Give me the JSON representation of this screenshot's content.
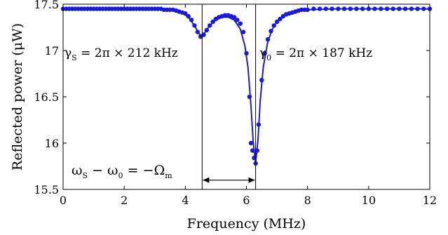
{
  "chart_data": {
    "type": "scatter",
    "xlabel": "Frequency (MHz)",
    "ylabel": "Reflected power (μW)",
    "xlim": [
      0,
      12
    ],
    "ylim": [
      15.5,
      17.5
    ],
    "xticks": [
      "0",
      "2",
      "4",
      "6",
      "8",
      "10",
      "12"
    ],
    "yticks": [
      "15.5",
      "16",
      "16.5",
      "17",
      "17.5"
    ],
    "grid": false,
    "marker_color": "#1a1adb",
    "line_color": "#1a1adb",
    "markers": [
      {
        "x": 0.0,
        "y": 17.45
      },
      {
        "x": 0.1,
        "y": 17.45
      },
      {
        "x": 0.2,
        "y": 17.45
      },
      {
        "x": 0.3,
        "y": 17.45
      },
      {
        "x": 0.4,
        "y": 17.45
      },
      {
        "x": 0.5,
        "y": 17.45
      },
      {
        "x": 0.6,
        "y": 17.45
      },
      {
        "x": 0.7,
        "y": 17.45
      },
      {
        "x": 0.8,
        "y": 17.45
      },
      {
        "x": 0.9,
        "y": 17.45
      },
      {
        "x": 1.0,
        "y": 17.45
      },
      {
        "x": 1.1,
        "y": 17.45
      },
      {
        "x": 1.2,
        "y": 17.45
      },
      {
        "x": 1.3,
        "y": 17.45
      },
      {
        "x": 1.4,
        "y": 17.45
      },
      {
        "x": 1.5,
        "y": 17.45
      },
      {
        "x": 1.6,
        "y": 17.45
      },
      {
        "x": 1.7,
        "y": 17.45
      },
      {
        "x": 1.8,
        "y": 17.45
      },
      {
        "x": 1.9,
        "y": 17.45
      },
      {
        "x": 2.0,
        "y": 17.45
      },
      {
        "x": 2.1,
        "y": 17.45
      },
      {
        "x": 2.2,
        "y": 17.45
      },
      {
        "x": 2.3,
        "y": 17.45
      },
      {
        "x": 2.4,
        "y": 17.45
      },
      {
        "x": 2.5,
        "y": 17.45
      },
      {
        "x": 2.6,
        "y": 17.45
      },
      {
        "x": 2.7,
        "y": 17.45
      },
      {
        "x": 2.8,
        "y": 17.45
      },
      {
        "x": 2.9,
        "y": 17.45
      },
      {
        "x": 3.0,
        "y": 17.45
      },
      {
        "x": 3.1,
        "y": 17.45
      },
      {
        "x": 3.2,
        "y": 17.45
      },
      {
        "x": 3.3,
        "y": 17.44
      },
      {
        "x": 3.4,
        "y": 17.44
      },
      {
        "x": 3.5,
        "y": 17.44
      },
      {
        "x": 3.6,
        "y": 17.44
      },
      {
        "x": 3.7,
        "y": 17.43
      },
      {
        "x": 3.8,
        "y": 17.42
      },
      {
        "x": 3.9,
        "y": 17.41
      },
      {
        "x": 4.0,
        "y": 17.4
      },
      {
        "x": 4.1,
        "y": 17.37
      },
      {
        "x": 4.2,
        "y": 17.33
      },
      {
        "x": 4.3,
        "y": 17.27
      },
      {
        "x": 4.4,
        "y": 17.2
      },
      {
        "x": 4.5,
        "y": 17.15
      },
      {
        "x": 4.6,
        "y": 17.17
      },
      {
        "x": 4.7,
        "y": 17.22
      },
      {
        "x": 4.8,
        "y": 17.27
      },
      {
        "x": 4.9,
        "y": 17.31
      },
      {
        "x": 5.0,
        "y": 17.34
      },
      {
        "x": 5.1,
        "y": 17.36
      },
      {
        "x": 5.2,
        "y": 17.37
      },
      {
        "x": 5.3,
        "y": 17.38
      },
      {
        "x": 5.4,
        "y": 17.38
      },
      {
        "x": 5.5,
        "y": 17.37
      },
      {
        "x": 5.6,
        "y": 17.36
      },
      {
        "x": 5.7,
        "y": 17.33
      },
      {
        "x": 5.8,
        "y": 17.29
      },
      {
        "x": 5.9,
        "y": 17.2
      },
      {
        "x": 6.0,
        "y": 16.97
      },
      {
        "x": 6.1,
        "y": 16.5
      },
      {
        "x": 6.15,
        "y": 16.0
      },
      {
        "x": 6.2,
        "y": 15.92
      },
      {
        "x": 6.25,
        "y": 15.84
      },
      {
        "x": 6.3,
        "y": 15.78
      },
      {
        "x": 6.35,
        "y": 15.92
      },
      {
        "x": 6.4,
        "y": 16.2
      },
      {
        "x": 6.5,
        "y": 16.68
      },
      {
        "x": 6.6,
        "y": 16.97
      },
      {
        "x": 6.7,
        "y": 17.12
      },
      {
        "x": 6.8,
        "y": 17.21
      },
      {
        "x": 6.9,
        "y": 17.27
      },
      {
        "x": 7.0,
        "y": 17.31
      },
      {
        "x": 7.1,
        "y": 17.34
      },
      {
        "x": 7.2,
        "y": 17.37
      },
      {
        "x": 7.3,
        "y": 17.39
      },
      {
        "x": 7.4,
        "y": 17.4
      },
      {
        "x": 7.5,
        "y": 17.41
      },
      {
        "x": 7.6,
        "y": 17.42
      },
      {
        "x": 7.7,
        "y": 17.43
      },
      {
        "x": 7.8,
        "y": 17.44
      },
      {
        "x": 7.9,
        "y": 17.44
      },
      {
        "x": 8.0,
        "y": 17.44
      },
      {
        "x": 8.2,
        "y": 17.45
      },
      {
        "x": 8.4,
        "y": 17.45
      },
      {
        "x": 8.6,
        "y": 17.45
      },
      {
        "x": 8.8,
        "y": 17.45
      },
      {
        "x": 9.0,
        "y": 17.45
      },
      {
        "x": 9.2,
        "y": 17.45
      },
      {
        "x": 9.4,
        "y": 17.45
      },
      {
        "x": 9.6,
        "y": 17.45
      },
      {
        "x": 9.8,
        "y": 17.45
      },
      {
        "x": 10.0,
        "y": 17.45
      },
      {
        "x": 10.2,
        "y": 17.45
      },
      {
        "x": 10.4,
        "y": 17.45
      },
      {
        "x": 10.6,
        "y": 17.45
      },
      {
        "x": 10.8,
        "y": 17.45
      },
      {
        "x": 11.0,
        "y": 17.45
      },
      {
        "x": 11.2,
        "y": 17.45
      },
      {
        "x": 11.4,
        "y": 17.45
      },
      {
        "x": 11.6,
        "y": 17.45
      },
      {
        "x": 11.8,
        "y": 17.45
      },
      {
        "x": 12.0,
        "y": 17.45
      }
    ],
    "fit_line": [
      {
        "x": 0.0,
        "y": 17.45
      },
      {
        "x": 2.0,
        "y": 17.45
      },
      {
        "x": 3.5,
        "y": 17.44
      },
      {
        "x": 3.9,
        "y": 17.41
      },
      {
        "x": 4.1,
        "y": 17.36
      },
      {
        "x": 4.3,
        "y": 17.27
      },
      {
        "x": 4.45,
        "y": 17.18
      },
      {
        "x": 4.55,
        "y": 17.16
      },
      {
        "x": 4.65,
        "y": 17.2
      },
      {
        "x": 4.8,
        "y": 17.27
      },
      {
        "x": 5.0,
        "y": 17.33
      },
      {
        "x": 5.2,
        "y": 17.36
      },
      {
        "x": 5.4,
        "y": 17.36
      },
      {
        "x": 5.6,
        "y": 17.33
      },
      {
        "x": 5.8,
        "y": 17.23
      },
      {
        "x": 5.95,
        "y": 17.05
      },
      {
        "x": 6.05,
        "y": 16.82
      },
      {
        "x": 6.15,
        "y": 16.4
      },
      {
        "x": 6.22,
        "y": 16.02
      },
      {
        "x": 6.3,
        "y": 15.78
      },
      {
        "x": 6.38,
        "y": 16.05
      },
      {
        "x": 6.45,
        "y": 16.45
      },
      {
        "x": 6.55,
        "y": 16.82
      },
      {
        "x": 6.7,
        "y": 17.1
      },
      {
        "x": 6.9,
        "y": 17.27
      },
      {
        "x": 7.2,
        "y": 17.37
      },
      {
        "x": 7.6,
        "y": 17.42
      },
      {
        "x": 8.0,
        "y": 17.44
      },
      {
        "x": 9.0,
        "y": 17.45
      },
      {
        "x": 12.0,
        "y": 17.45
      }
    ],
    "vertical_lines_x": [
      4.55,
      6.3
    ],
    "arrow": {
      "x_from": 4.55,
      "x_to": 6.3,
      "y": 15.6
    },
    "annotations": {
      "gamma_s": {
        "symbol": "γ",
        "sub": "S",
        "rest": " = 2π × 212 kHz"
      },
      "gamma_0": {
        "symbol": "γ",
        "sub": "0",
        "rest": " = 2π × 187 kHz"
      },
      "detuning": {
        "lhs1": "ω",
        "lhs1_sub": "S",
        "mid": " − ω",
        "mid_sub": "0",
        "rest": " = −Ω",
        "rest_sub": "m"
      }
    }
  }
}
